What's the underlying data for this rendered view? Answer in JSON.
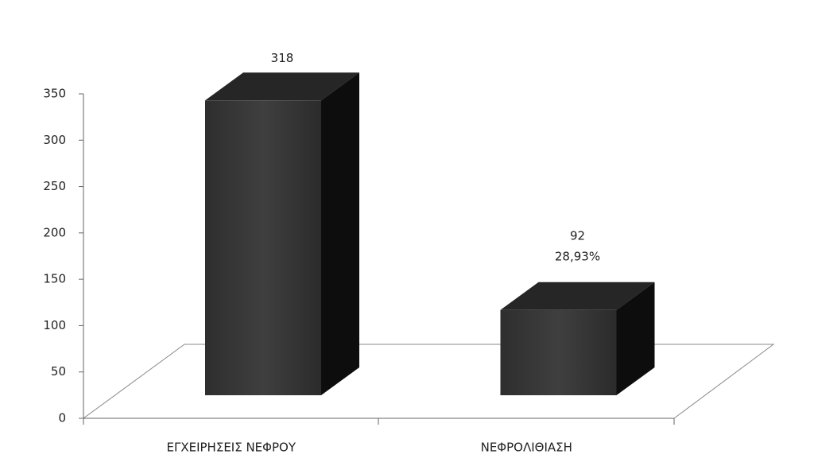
{
  "chart_data": {
    "type": "bar3d",
    "categories": [
      "ΕΓΧΕΙΡΗΣΕΙΣ ΝΕΦΡΟΥ",
      "ΝΕΦΡΟΛΙΘΙΑΣΗ"
    ],
    "values": [
      318,
      92
    ],
    "annotation": "28,93%",
    "color": "#3a3a3a",
    "ylim": [
      0,
      350
    ],
    "yticks": [
      0,
      50,
      100,
      150,
      200,
      250,
      300,
      350
    ]
  }
}
